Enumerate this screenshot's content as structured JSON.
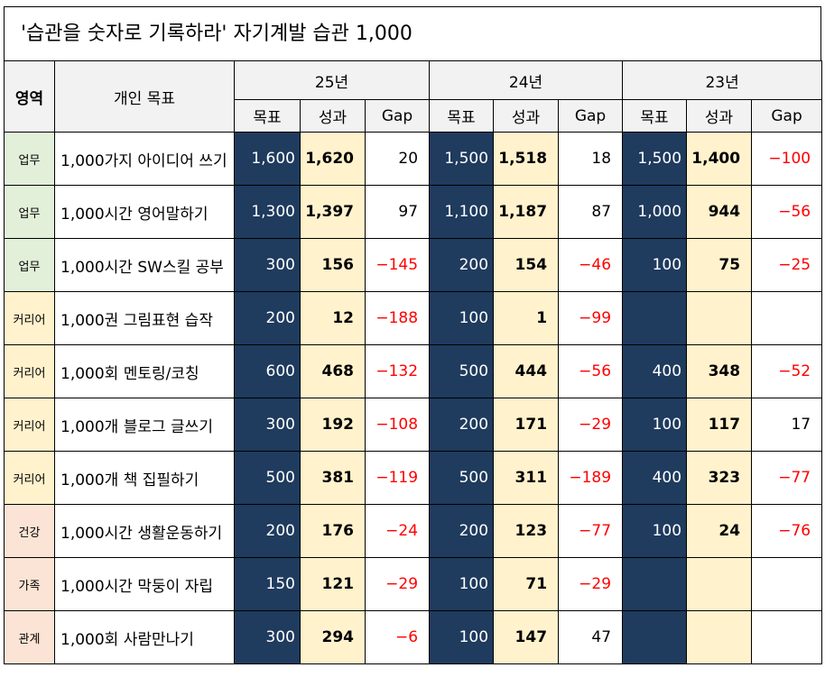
{
  "title": "'습관을 숫자로 기록하라'  자기계발 습관 1,000",
  "headers": {
    "area": "영역",
    "habit": "개인 목표",
    "years": [
      "25년",
      "24년",
      "23년"
    ],
    "sub": [
      "목표",
      "성과",
      "Gap"
    ]
  },
  "rows": [
    {
      "area": "업무",
      "cls": "work",
      "habit": "1,000가지 아이디어 쓰기",
      "y25": [
        "1,600",
        "1,620",
        "20"
      ],
      "y24": [
        "1,500",
        "1,518",
        "18"
      ],
      "y23": [
        "1,500",
        "1,400",
        "−100"
      ]
    },
    {
      "area": "업무",
      "cls": "work",
      "habit": "1,000시간 영어말하기",
      "y25": [
        "1,300",
        "1,397",
        "97"
      ],
      "y24": [
        "1,100",
        "1,187",
        "87"
      ],
      "y23": [
        "1,000",
        "944",
        "−56"
      ]
    },
    {
      "area": "업무",
      "cls": "work",
      "habit": "1,000시간 SW스킬 공부",
      "y25": [
        "300",
        "156",
        "−145"
      ],
      "y24": [
        "200",
        "154",
        "−46"
      ],
      "y23": [
        "100",
        "75",
        "−25"
      ]
    },
    {
      "area": "커리어",
      "cls": "career",
      "habit": "1,000권 그림표현 습작",
      "y25": [
        "200",
        "12",
        "−188"
      ],
      "y24": [
        "100",
        "1",
        "−99"
      ],
      "y23": [
        "",
        "",
        ""
      ]
    },
    {
      "area": "커리어",
      "cls": "career",
      "habit": "1,000회 멘토링/코칭",
      "y25": [
        "600",
        "468",
        "−132"
      ],
      "y24": [
        "500",
        "444",
        "−56"
      ],
      "y23": [
        "400",
        "348",
        "−52"
      ]
    },
    {
      "area": "커리어",
      "cls": "career",
      "habit": "1,000개 블로그 글쓰기",
      "y25": [
        "300",
        "192",
        "−108"
      ],
      "y24": [
        "200",
        "171",
        "−29"
      ],
      "y23": [
        "100",
        "117",
        "17"
      ]
    },
    {
      "area": "커리어",
      "cls": "career",
      "habit": "1,000개 책 집필하기",
      "y25": [
        "500",
        "381",
        "−119"
      ],
      "y24": [
        "500",
        "311",
        "−189"
      ],
      "y23": [
        "400",
        "323",
        "−77"
      ]
    },
    {
      "area": "건강",
      "cls": "health",
      "habit": "1,000시간 생활운동하기",
      "y25": [
        "200",
        "176",
        "−24"
      ],
      "y24": [
        "200",
        "123",
        "−77"
      ],
      "y23": [
        "100",
        "24",
        "−76"
      ]
    },
    {
      "area": "가족",
      "cls": "family",
      "habit": "1,000시간 막둥이 자립",
      "y25": [
        "150",
        "121",
        "−29"
      ],
      "y24": [
        "100",
        "71",
        "−29"
      ],
      "y23": [
        "",
        "",
        ""
      ]
    },
    {
      "area": "관계",
      "cls": "relation",
      "habit": "1,000회 사람만나기",
      "y25": [
        "300",
        "294",
        "−6"
      ],
      "y24": [
        "100",
        "147",
        "47"
      ],
      "y23": [
        "",
        "",
        ""
      ]
    }
  ],
  "colors": {
    "goal_bg": "#1f3b5e",
    "result_bg": "#fff2cc",
    "negative": "#ff0000"
  }
}
